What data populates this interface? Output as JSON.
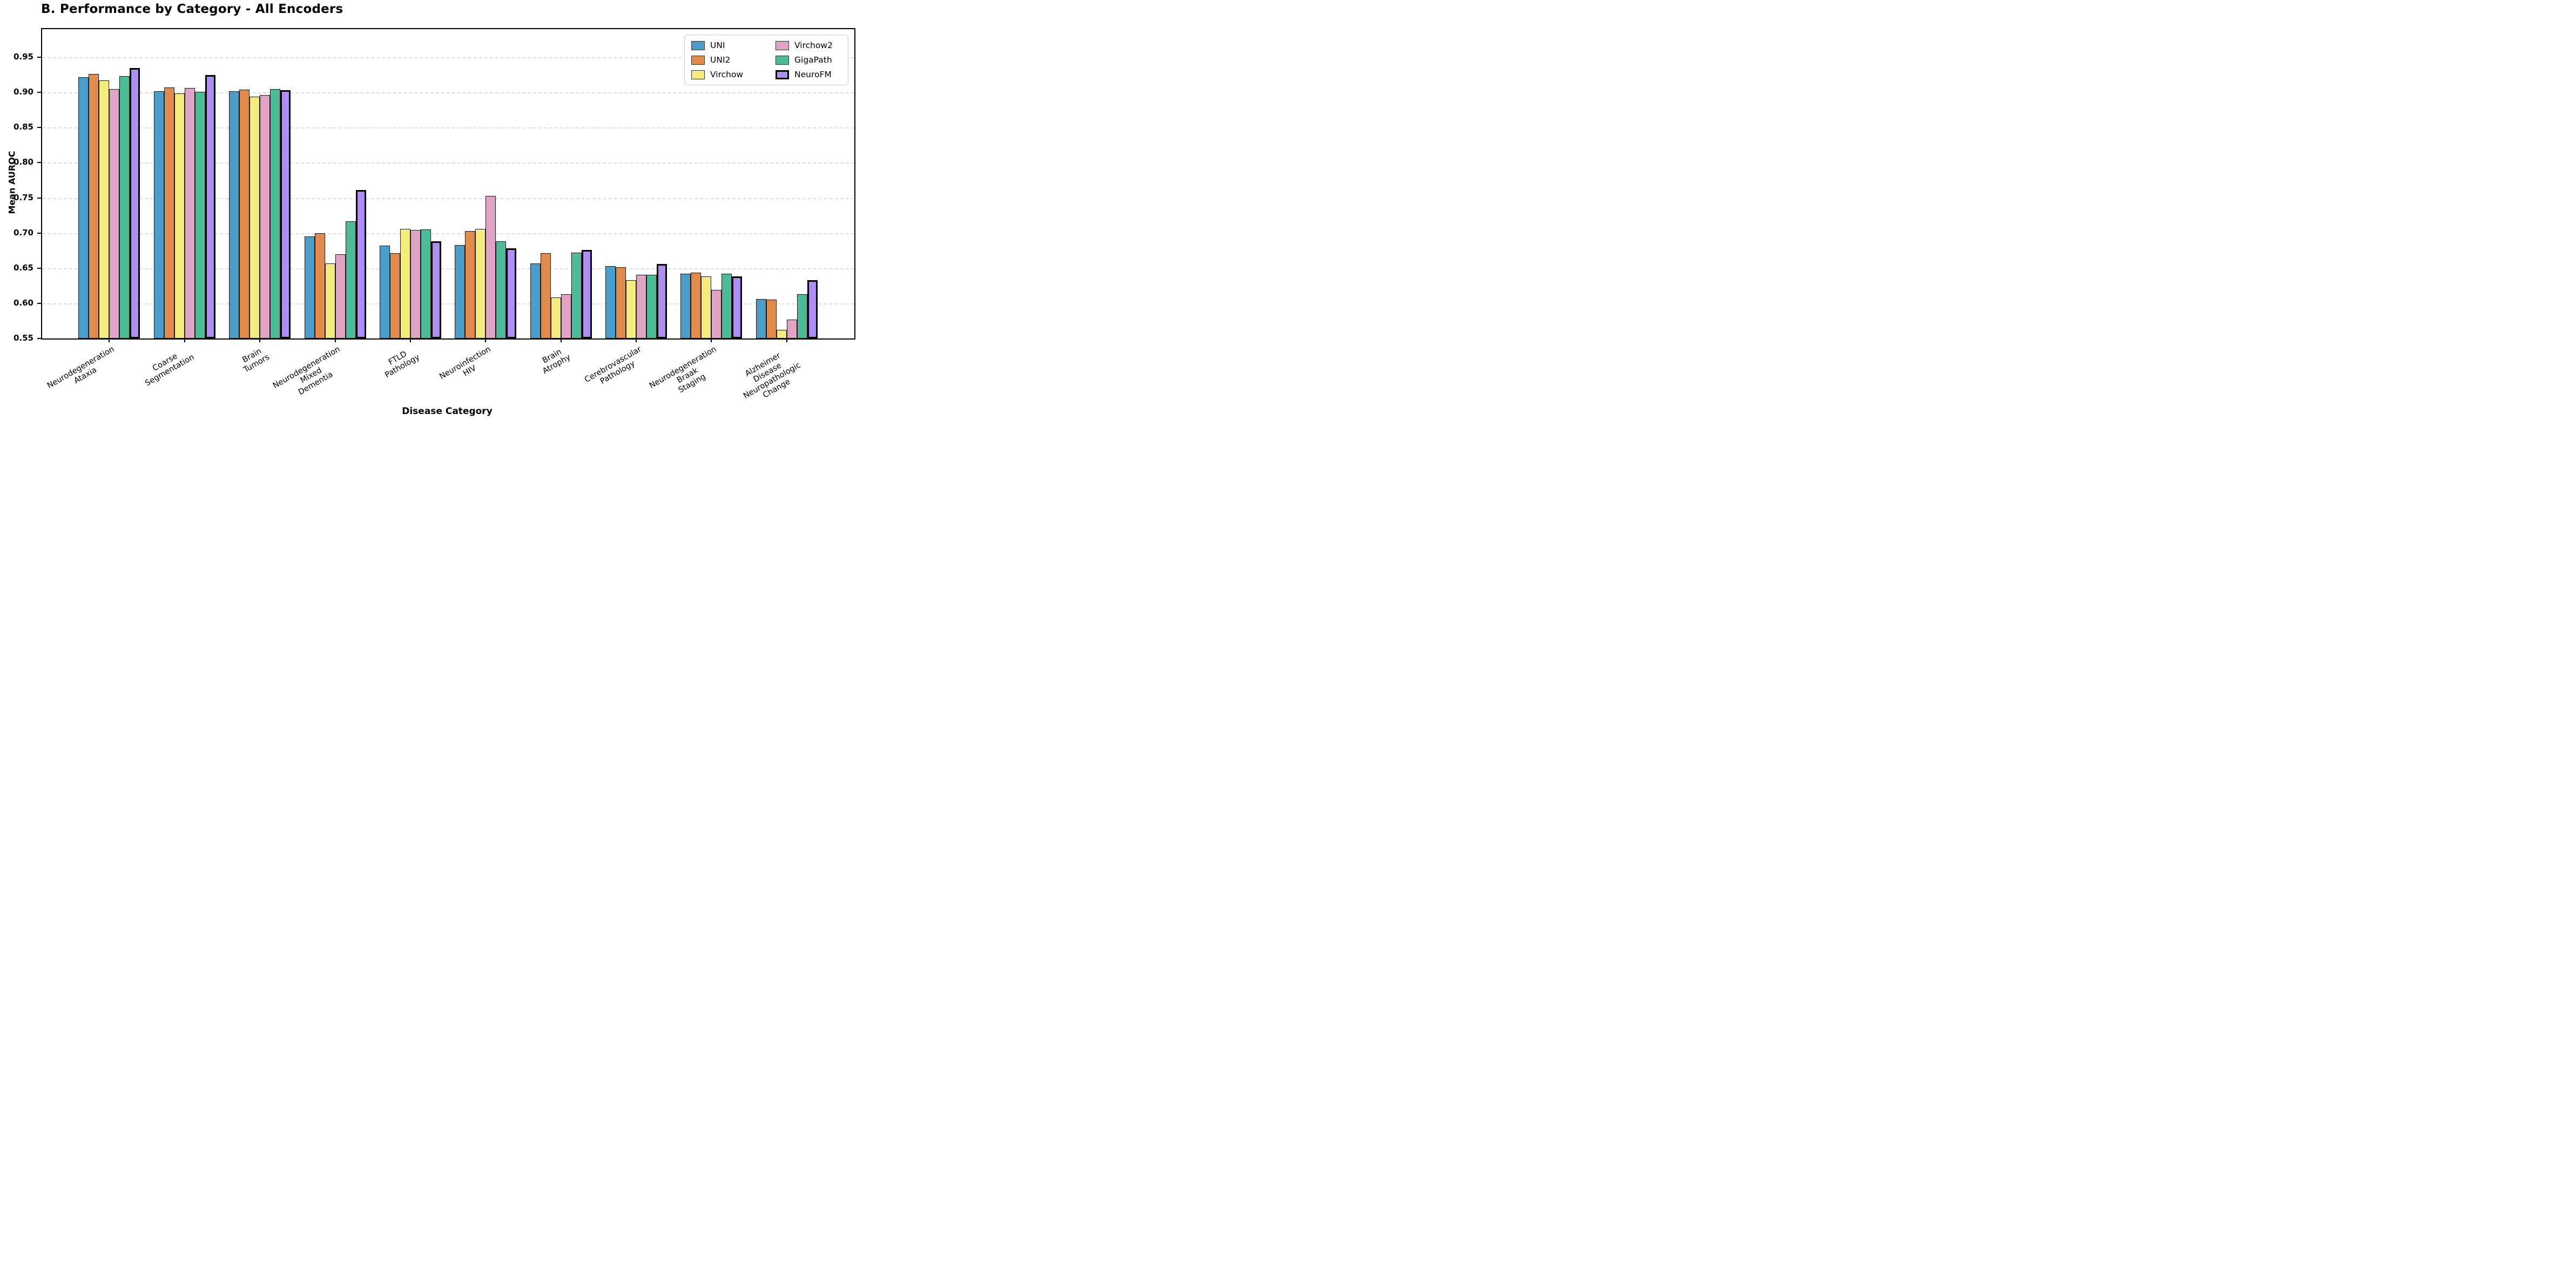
{
  "chart_data": {
    "type": "bar",
    "title": "B. Performance by Category - All Encoders",
    "xlabel": "Disease Category",
    "ylabel": "Mean AUROC",
    "ylim": [
      0.55,
      0.99
    ],
    "yticks": [
      0.55,
      0.6,
      0.65,
      0.7,
      0.75,
      0.8,
      0.85,
      0.9,
      0.95
    ],
    "grid": "horizontal-dashed",
    "legend_position": "upper right",
    "legend_columns": 2,
    "categories": [
      "Neurodegeneration\nAtaxia",
      "Coarse\nSegmentation",
      "Brain\nTumors",
      "Neurodegeneration\nMixed\nDementia",
      "FTLD\nPathology",
      "Neuroinfection\nHIV",
      "Brain\nAtrophy",
      "Cerebrovascular\nPathology",
      "Neurodegeneration\nBraak\nStaging",
      "Alzheimer\nDisease\nNeuropathologic\nChange"
    ],
    "series": [
      {
        "name": "UNI",
        "color": "#4a9cc9",
        "highlight": false,
        "values": [
          0.922,
          0.902,
          0.902,
          0.695,
          0.682,
          0.683,
          0.657,
          0.653,
          0.642,
          0.606
        ]
      },
      {
        "name": "UNI2",
        "color": "#e08a4b",
        "highlight": false,
        "values": [
          0.926,
          0.907,
          0.904,
          0.7,
          0.671,
          0.703,
          0.671,
          0.651,
          0.644,
          0.605
        ]
      },
      {
        "name": "Virchow",
        "color": "#f3ec7d",
        "highlight": false,
        "values": [
          0.917,
          0.899,
          0.894,
          0.657,
          0.706,
          0.706,
          0.608,
          0.633,
          0.638,
          0.562
        ]
      },
      {
        "name": "Virchow2",
        "color": "#dfa3c4",
        "highlight": false,
        "values": [
          0.905,
          0.906,
          0.896,
          0.67,
          0.704,
          0.753,
          0.613,
          0.641,
          0.619,
          0.577
        ]
      },
      {
        "name": "GigaPath",
        "color": "#4bbc97",
        "highlight": false,
        "values": [
          0.923,
          0.901,
          0.905,
          0.717,
          0.705,
          0.688,
          0.672,
          0.641,
          0.642,
          0.613
        ]
      },
      {
        "name": "NeuroFM",
        "color": "#ae8ef5",
        "highlight": true,
        "values": [
          0.935,
          0.925,
          0.903,
          0.761,
          0.688,
          0.678,
          0.676,
          0.656,
          0.638,
          0.633
        ]
      }
    ],
    "colors": {
      "bar_edge": "#1a1a1a",
      "highlight_edge": "#000000",
      "grid": "#dedede",
      "axis": "#000000",
      "legend_border": "#cccccc",
      "background": "#ffffff"
    }
  }
}
